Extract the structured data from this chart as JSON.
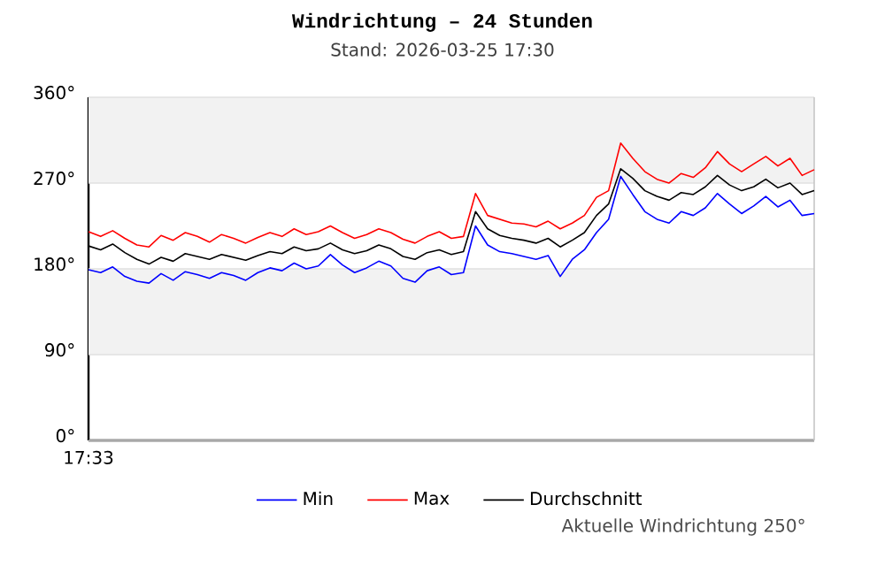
{
  "chart_data": {
    "type": "line",
    "title": "Windrichtung – 24 Stunden",
    "subtitle": "Stand: 2026-03-25 17:30",
    "annotations": [
      "17:33",
      "Aktuelle Windrichtung 250°"
    ],
    "categories": [
      null,
      null,
      null,
      null,
      null,
      null,
      null,
      null,
      null,
      null,
      null,
      null,
      null,
      null,
      null,
      null,
      null,
      null,
      null,
      null,
      null,
      null,
      null,
      null,
      null,
      null,
      null,
      null,
      null,
      null,
      null,
      null,
      null,
      null,
      null,
      null,
      null,
      null,
      null,
      null,
      null,
      null,
      null,
      null,
      null,
      null,
      null,
      null,
      null,
      null,
      null,
      null,
      null,
      null,
      null,
      null,
      null,
      null,
      null,
      null,
      null
    ],
    "series": [
      {
        "name": "Min",
        "color": "#0000ff",
        "values": [
          179,
          176,
          182,
          172,
          167,
          165,
          175,
          168,
          177,
          174,
          170,
          176,
          173,
          168,
          176,
          181,
          178,
          186,
          180,
          183,
          195,
          184,
          176,
          181,
          188,
          183,
          170,
          166,
          178,
          182,
          174,
          176,
          225,
          205,
          198,
          196,
          193,
          190,
          194,
          172,
          190,
          200,
          218,
          232,
          277,
          258,
          240,
          232,
          228,
          240,
          236,
          244,
          259,
          248,
          238,
          246,
          256,
          245,
          252,
          236,
          238
        ]
      },
      {
        "name": "Max",
        "color": "#ff0000",
        "values": [
          219,
          214,
          220,
          212,
          205,
          203,
          215,
          210,
          218,
          214,
          208,
          216,
          212,
          207,
          213,
          218,
          214,
          222,
          216,
          219,
          225,
          218,
          212,
          216,
          222,
          218,
          211,
          207,
          214,
          219,
          212,
          214,
          259,
          236,
          232,
          228,
          227,
          224,
          230,
          222,
          228,
          236,
          255,
          262,
          312,
          296,
          282,
          274,
          270,
          280,
          276,
          286,
          303,
          290,
          282,
          290,
          298,
          288,
          296,
          278,
          284
        ]
      },
      {
        "name": "Durchschnitt",
        "color": "#000000",
        "values": [
          204,
          200,
          206,
          197,
          190,
          185,
          192,
          188,
          196,
          193,
          190,
          195,
          192,
          189,
          194,
          198,
          196,
          203,
          199,
          201,
          207,
          200,
          196,
          199,
          205,
          201,
          193,
          190,
          197,
          200,
          195,
          198,
          240,
          222,
          215,
          212,
          210,
          207,
          212,
          203,
          210,
          218,
          236,
          248,
          285,
          275,
          262,
          256,
          252,
          260,
          258,
          266,
          278,
          268,
          262,
          266,
          274,
          265,
          270,
          258,
          262
        ]
      }
    ],
    "ylim": [
      0,
      360
    ],
    "yticks": [
      {
        "value": 0,
        "label": "0°"
      },
      {
        "value": 90,
        "label": "90°"
      },
      {
        "value": 180,
        "label": "180°"
      },
      {
        "value": 270,
        "label": "270°"
      },
      {
        "value": 360,
        "label": "360°"
      }
    ],
    "bands": [
      {
        "axis": "y",
        "from": 90,
        "to": 180,
        "color": "#f2f2f2"
      },
      {
        "axis": "y",
        "from": 270,
        "to": 360,
        "color": "#f2f2f2"
      }
    ],
    "grid": "y",
    "legend": "bottom",
    "marker": "none",
    "line_style": "solid"
  }
}
